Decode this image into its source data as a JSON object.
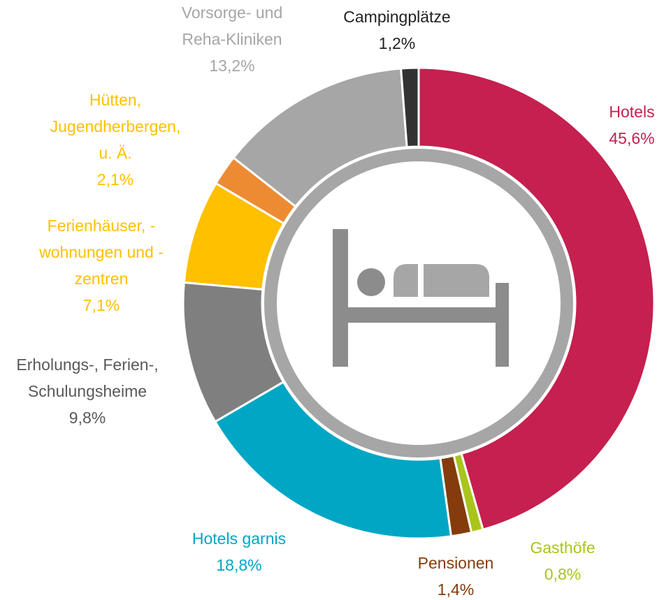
{
  "chart_data": {
    "type": "donut",
    "categories": [
      "Hotels",
      "Gasthöfe",
      "Pensionen",
      "Hotels garnis",
      "Erholungs-, Ferien-,\nSchulungsheime",
      "Ferienhäuser, -\nwohnungen und -\nzentren",
      "Hütten,\nJugendherbergen,\nu. Ä.",
      "Vorsorge- und\nReha-Kliniken",
      "Campingplätze"
    ],
    "values": [
      45.6,
      0.8,
      1.4,
      18.8,
      9.8,
      7.1,
      2.1,
      13.2,
      1.2
    ],
    "value_labels": [
      "45,6%",
      "0,8%",
      "1,4%",
      "18,8%",
      "9,8%",
      "7,1%",
      "2,1%",
      "13,2%",
      "1,2%"
    ],
    "colors": [
      "#c5204f",
      "#a9c51b",
      "#843c0c",
      "#00a6c4",
      "#7f7f7f",
      "#ffc000",
      "#ed8b32",
      "#a6a6a6",
      "#333333"
    ]
  }
}
